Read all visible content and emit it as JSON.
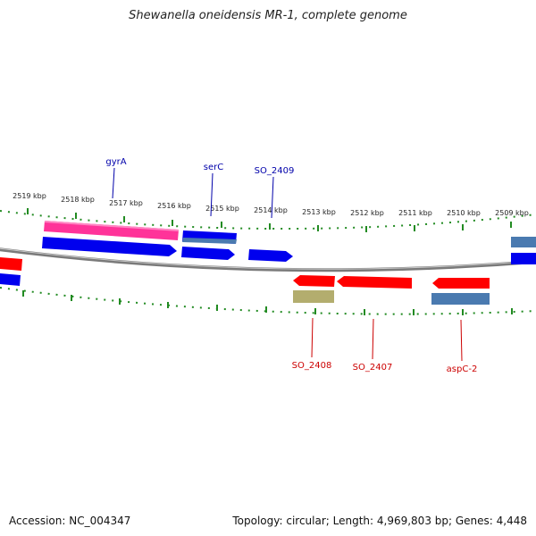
{
  "title": "Shewanella oneidensis MR-1, complete genome",
  "footer": {
    "accession": "Accession: NC_004347",
    "topology": "Topology: circular; Length: 4,969,803 bp; Genes: 4,448"
  },
  "scale_labels": [
    "2519 kbp",
    "2518 kbp",
    "2517 kbp",
    "2516 kbp",
    "2515 kbp",
    "2514 kbp",
    "2513 kbp",
    "2512 kbp",
    "2511 kbp",
    "2510 kbp",
    "2509 kbp"
  ],
  "gene_labels": {
    "top": [
      "gyrA",
      "serC",
      "SO_2409"
    ],
    "bottom": [
      "SO_2408",
      "SO_2407",
      "aspC-2"
    ]
  },
  "colors": {
    "forward": "#0000ee",
    "reverse": "#ff0000",
    "pink": "#ff3399",
    "steel": "#4a7ab0",
    "olive": "#b3ad6e",
    "tick": "#228b22",
    "backbone": "#808080",
    "label_top": "#0000aa",
    "label_bottom": "#cc0000"
  }
}
